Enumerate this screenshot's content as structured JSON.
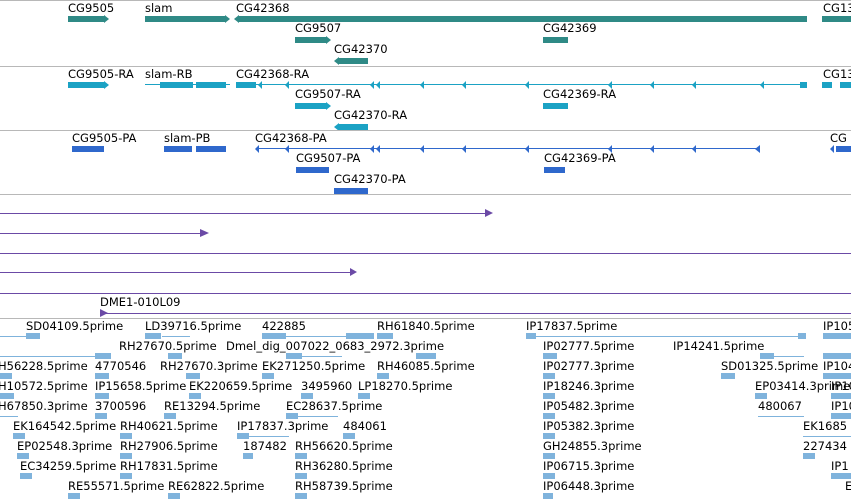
{
  "colors": {
    "gene": "#2f8a86",
    "transcript": "#1ba2c4",
    "cds": "#2f68cc",
    "read": "#6b4aa6",
    "est": "#7fb3dc",
    "divider": "#b8b8b8"
  },
  "genes_track": {
    "labels": [
      "CG9505",
      "slam",
      "CG42368",
      "CG13",
      "CG9507",
      "CG42369",
      "CG42370"
    ]
  },
  "transcripts_track": {
    "labels": [
      "CG9505-RA",
      "slam-RB",
      "CG42368-RA",
      "CG13",
      "CG9507-RA",
      "CG42369-RA",
      "CG42370-RA"
    ]
  },
  "polypeptides_track": {
    "labels": [
      "CG9505-PA",
      "slam-PB",
      "CG42368-PA",
      "CG",
      "CG9507-PA",
      "CG42369-PA",
      "CG42370-PA"
    ]
  },
  "clone_track": {
    "labels": [
      "DME1-010L09"
    ]
  },
  "est_track": {
    "labels": [
      "SD04109.5prime",
      "LD39716.5prime",
      "422885",
      "RH61840.5prime",
      "IP17837.5prime",
      "IP105",
      "RH27670.5prime",
      "Dmel_dig_007022_0683_2972.3prime",
      "IP02777.5prime",
      "IP14241.5prime",
      "H56228.5prime",
      "4770546",
      "RH27670.3prime",
      "EK271250.5prime",
      "RH46085.5prime",
      "IP02777.3prime",
      "SD01325.5prime",
      "IP104",
      "H10572.5prime",
      "IP15658.5prime",
      "EK220659.5prime",
      "3495960",
      "LP18270.5prime",
      "IP18246.3prime",
      "EP03414.3prime",
      "IP10",
      "H67850.3prime",
      "3700596",
      "RE13294.5prime",
      "EC28637.5prime",
      "IP05482.3prime",
      "480067",
      "IP10",
      "EK164542.5prime",
      "RH40621.5prime",
      "IP17837.3prime",
      "484061",
      "IP05382.3prime",
      "EK1685",
      "EP02548.3prime",
      "RH27906.5prime",
      "187482",
      "RH56620.5prime",
      "GH24855.3prime",
      "227434",
      "EC34259.5prime",
      "RH17831.5prime",
      "RH36280.5prime",
      "IP06715.3prime",
      "IP1",
      "RE55571.5prime",
      "RE62822.5prime",
      "RH58739.5prime",
      "IP06448.3prime",
      "E"
    ]
  }
}
